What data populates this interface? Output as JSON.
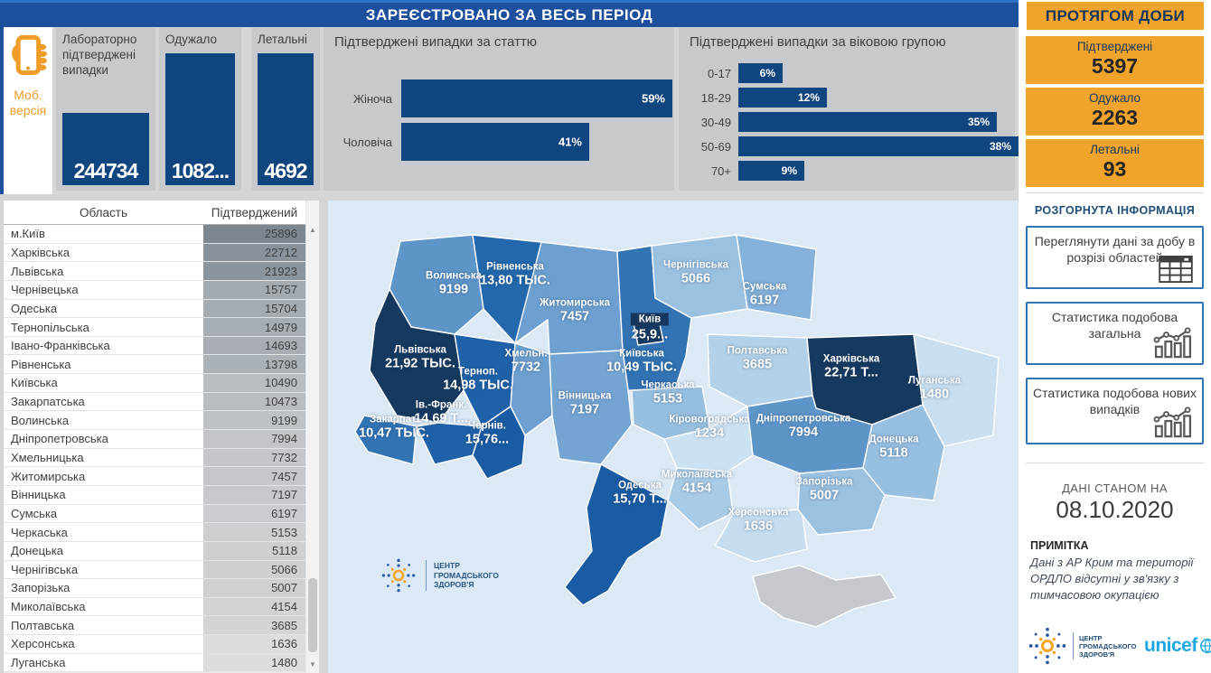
{
  "header": {
    "title": "ЗАРЕЄСТРОВАНО ЗА ВЕСЬ ПЕРІОД",
    "daily_title": "ПРОТЯГОМ ДОБИ"
  },
  "mobile": {
    "label": "Моб. версія"
  },
  "kpi_cards": [
    {
      "title": "Лабораторно підтверджені випадки",
      "value": "244734"
    },
    {
      "title": "Одужало",
      "value": "1082..."
    },
    {
      "title": "Летальні",
      "value": "4692"
    }
  ],
  "gender_chart": {
    "type": "bar",
    "title": "Підтверджені випадки за статтю",
    "categories": [
      "Жіноча",
      "Чоловіча"
    ],
    "values": [
      59,
      41
    ],
    "labels": [
      "59%",
      "41%"
    ]
  },
  "age_chart": {
    "type": "bar",
    "title": "Підтверджені випадки за віковою групою",
    "categories": [
      "0-17",
      "18-29",
      "30-49",
      "50-69",
      "70+"
    ],
    "values": [
      6,
      12,
      35,
      38,
      9
    ],
    "labels": [
      "6%",
      "12%",
      "35%",
      "38%",
      "9%"
    ]
  },
  "daily_cards": [
    {
      "label": "Підтверджені",
      "value": "5397"
    },
    {
      "label": "Одужало",
      "value": "2263"
    },
    {
      "label": "Летальні",
      "value": "93"
    }
  ],
  "details": {
    "heading": "РОЗГОРНУТА ІНФОРМАЦІЯ",
    "buttons": [
      {
        "label": "Переглянути дані за добу в розрізі областей",
        "icon": "table-icon"
      },
      {
        "label": "Статистика подобова загальна",
        "icon": "stats-icon"
      },
      {
        "label": "Статистика подобова нових випадків",
        "icon": "stats-icon"
      }
    ]
  },
  "as_of": {
    "label": "ДАНІ СТАНОМ НА",
    "date": "08.10.2020"
  },
  "note": {
    "heading": "ПРИМІТКА",
    "text": "Дані з АР Крим та території ОРДЛО відсутні у зв'язку з тимчасовою окупацією"
  },
  "logos": {
    "phc": "Центр громадського здоров'я",
    "unicef": "unicef"
  },
  "table": {
    "columns": [
      "Область",
      "Підтверджений"
    ],
    "rows": [
      [
        "м.Київ",
        25896
      ],
      [
        "Харківська",
        22712
      ],
      [
        "Львівська",
        21923
      ],
      [
        "Чернівецька",
        15757
      ],
      [
        "Одеська",
        15704
      ],
      [
        "Тернопільська",
        14979
      ],
      [
        "Івано-Франківська",
        14693
      ],
      [
        "Рівненська",
        13798
      ],
      [
        "Київська",
        10490
      ],
      [
        "Закарпатська",
        10473
      ],
      [
        "Волинська",
        9199
      ],
      [
        "Дніпропетровська",
        7994
      ],
      [
        "Хмельницька",
        7732
      ],
      [
        "Житомирська",
        7457
      ],
      [
        "Вінницька",
        7197
      ],
      [
        "Сумська",
        6197
      ],
      [
        "Черкаська",
        5153
      ],
      [
        "Донецька",
        5118
      ],
      [
        "Чернігівська",
        5066
      ],
      [
        "Запорізька",
        5007
      ],
      [
        "Миколаївська",
        4154
      ],
      [
        "Полтавська",
        3685
      ],
      [
        "Херсонська",
        1636
      ],
      [
        "Луганська",
        1480
      ]
    ]
  },
  "map": {
    "type": "choropleth",
    "regions": [
      {
        "id": "volyn",
        "name": "Волинська",
        "value": "9199",
        "color": "#5e95c9"
      },
      {
        "id": "rivne",
        "name": "Рівненська",
        "value": "13,80 ТЫС.",
        "color": "#2368ad"
      },
      {
        "id": "zhytomyr",
        "name": "Житомирська",
        "value": "7457",
        "color": "#6da0d0"
      },
      {
        "id": "kyivobl",
        "name": "Київська",
        "value": "10,49 ТЫС.",
        "color": "#3273b4"
      },
      {
        "id": "chernihiv",
        "name": "Чернігівська",
        "value": "5066",
        "color": "#9bc1e1"
      },
      {
        "id": "sumy",
        "name": "Сумська",
        "value": "6197",
        "color": "#85b2da"
      },
      {
        "id": "lviv",
        "name": "Львівська",
        "value": "21,92 ТЫС.",
        "color": "#16395f"
      },
      {
        "id": "ternopil",
        "name": "Терноп.",
        "value": "14,98 ТЫС.",
        "color": "#1f61a8"
      },
      {
        "id": "khmel",
        "name": "Хмельн.",
        "value": "7732",
        "color": "#6da0d0"
      },
      {
        "id": "vinnytsia",
        "name": "Вінницька",
        "value": "7197",
        "color": "#74a5d2"
      },
      {
        "id": "zakarpattia",
        "name": "Закарпат.",
        "value": "10,47 ТЫС.",
        "color": "#3273b4"
      },
      {
        "id": "ivfrank",
        "name": "Ів.-Франк.",
        "value": "14,69 Т...",
        "color": "#1f61a8"
      },
      {
        "id": "chernivtsi",
        "name": "Чернів.",
        "value": "15,76...",
        "color": "#1a5ca3"
      },
      {
        "id": "cherkasy",
        "name": "Черкаська",
        "value": "5153",
        "color": "#97bfe0"
      },
      {
        "id": "poltava",
        "name": "Полтавська",
        "value": "3685",
        "color": "#b3d2e9"
      },
      {
        "id": "kharkiv",
        "name": "Харківська",
        "value": "22,71 Т...",
        "color": "#16395f"
      },
      {
        "id": "kirovohrad",
        "name": "Кіровоградська",
        "value": "1234",
        "color": "#cce1f1"
      },
      {
        "id": "dnipro",
        "name": "Дніпропетровська",
        "value": "7994",
        "color": "#5e95c9"
      },
      {
        "id": "donetsk",
        "name": "Донецька",
        "value": "5118",
        "color": "#97bfe0"
      },
      {
        "id": "luhansk",
        "name": "Луганська",
        "value": "1480",
        "color": "#c9dff0"
      },
      {
        "id": "odesa",
        "name": "Одеська",
        "value": "15,70 Т...",
        "color": "#1a5ca3"
      },
      {
        "id": "mykolaiv",
        "name": "Миколаївська",
        "value": "4154",
        "color": "#a9cbe6"
      },
      {
        "id": "kherson",
        "name": "Херсонська",
        "value": "1636",
        "color": "#c6ddf0"
      },
      {
        "id": "zaporizhzhia",
        "name": "Запорізька",
        "value": "5007",
        "color": "#9bc1e1"
      },
      {
        "id": "kyivcity",
        "name": "Київ",
        "value": "25,9...",
        "color": "#16395f",
        "boxed": true
      },
      {
        "id": "crimea",
        "name": "",
        "value": "",
        "color": "#c5c9cd"
      }
    ]
  },
  "colors": {
    "header_navy": "#1d4f9c",
    "bar_navy": "#11457f",
    "orange": "#f0a42c",
    "button_border": "#2e75b6",
    "unicef_blue": "#1da7e0",
    "map_sea": "#dbe9f6",
    "crimea_gray": "#c5c9cd"
  }
}
